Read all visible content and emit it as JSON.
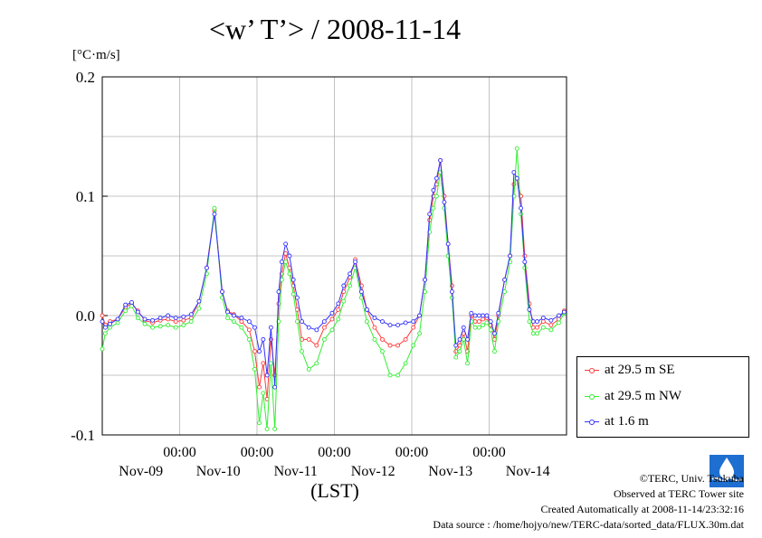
{
  "header": {
    "title": "<w’ T’> / 2008-11-14",
    "unit": "[°C·m/s]"
  },
  "xaxis_label": "(LST)",
  "legend": {
    "items": [
      {
        "label": "at 29.5 m SE",
        "color": "#ff3b3b"
      },
      {
        "label": "at 29.5 m NW",
        "color": "#33ee33"
      },
      {
        "label": "at 1.6 m",
        "color": "#3333ff"
      }
    ]
  },
  "credits": {
    "copyright": "©TERC, Univ. Tsukuba",
    "observed": "Observed at TERC Tower site",
    "created": "Created Automatically at 2008-11-14/23:32:16",
    "source": "Data source : /home/hojyo/new/TERC-data/sorted_data/FLUX.30m.dat"
  },
  "logo_text": "TERC",
  "chart_data": {
    "type": "line",
    "title": "<w’ T’> / 2008-11-14",
    "ylabel": "[°C·m/s]",
    "xlabel": "(LST)",
    "ylim": [
      -0.1,
      0.2
    ],
    "yticks": [
      "-0.1",
      "0.0",
      "0.1",
      "0.2"
    ],
    "xlim": [
      0.0,
      6.0
    ],
    "xticks": [
      {
        "time": "00:00",
        "date": "Nov-09"
      },
      {
        "time": "00:00",
        "date": "Nov-10"
      },
      {
        "time": "00:00",
        "date": "Nov-11"
      },
      {
        "time": "00:00",
        "date": "Nov-12"
      },
      {
        "time": "00:00",
        "date": "Nov-13"
      },
      {
        "time": "00:00",
        "date": "Nov-14"
      }
    ],
    "grid": true,
    "x_unit": "days",
    "series": [
      {
        "name": "at 29.5 m SE",
        "color": "#ff3b3b",
        "points": [
          [
            0.0,
            0.0
          ],
          [
            0.04,
            -0.008
          ],
          [
            0.1,
            -0.005
          ],
          [
            0.2,
            -0.003
          ],
          [
            0.3,
            0.007
          ],
          [
            0.38,
            0.01
          ],
          [
            0.46,
            0.004
          ],
          [
            0.55,
            -0.004
          ],
          [
            0.65,
            -0.006
          ],
          [
            0.75,
            -0.004
          ],
          [
            0.85,
            -0.003
          ],
          [
            0.95,
            -0.005
          ],
          [
            1.05,
            -0.004
          ],
          [
            1.15,
            -0.002
          ],
          [
            1.25,
            0.012
          ],
          [
            1.35,
            0.04
          ],
          [
            1.45,
            0.088
          ],
          [
            1.55,
            0.02
          ],
          [
            1.62,
            0.004
          ],
          [
            1.7,
            0.001
          ],
          [
            1.8,
            -0.005
          ],
          [
            1.9,
            -0.012
          ],
          [
            1.97,
            -0.03
          ],
          [
            2.03,
            -0.06
          ],
          [
            2.08,
            -0.04
          ],
          [
            2.13,
            -0.07
          ],
          [
            2.18,
            -0.02
          ],
          [
            2.23,
            -0.05
          ],
          [
            2.28,
            0.01
          ],
          [
            2.32,
            0.035
          ],
          [
            2.37,
            0.052
          ],
          [
            2.42,
            0.04
          ],
          [
            2.47,
            0.025
          ],
          [
            2.52,
            0.005
          ],
          [
            2.58,
            -0.02
          ],
          [
            2.67,
            -0.02
          ],
          [
            2.77,
            -0.025
          ],
          [
            2.87,
            -0.01
          ],
          [
            2.97,
            -0.003
          ],
          [
            3.05,
            0.005
          ],
          [
            3.12,
            0.02
          ],
          [
            3.2,
            0.032
          ],
          [
            3.27,
            0.047
          ],
          [
            3.35,
            0.025
          ],
          [
            3.42,
            0.005
          ],
          [
            3.52,
            -0.01
          ],
          [
            3.62,
            -0.02
          ],
          [
            3.72,
            -0.025
          ],
          [
            3.82,
            -0.025
          ],
          [
            3.92,
            -0.02
          ],
          [
            4.02,
            -0.01
          ],
          [
            4.1,
            0.0
          ],
          [
            4.17,
            0.03
          ],
          [
            4.23,
            0.08
          ],
          [
            4.28,
            0.1
          ],
          [
            4.32,
            0.11
          ],
          [
            4.37,
            0.13
          ],
          [
            4.42,
            0.1
          ],
          [
            4.47,
            0.06
          ],
          [
            4.52,
            0.025
          ],
          [
            4.57,
            -0.03
          ],
          [
            4.62,
            -0.025
          ],
          [
            4.67,
            -0.015
          ],
          [
            4.72,
            -0.03
          ],
          [
            4.77,
            0.0
          ],
          [
            4.82,
            -0.005
          ],
          [
            4.87,
            -0.005
          ],
          [
            4.92,
            -0.003
          ],
          [
            4.97,
            -0.002
          ],
          [
            5.02,
            -0.008
          ],
          [
            5.07,
            -0.02
          ],
          [
            5.12,
            0.0
          ],
          [
            5.2,
            0.03
          ],
          [
            5.27,
            0.05
          ],
          [
            5.32,
            0.11
          ],
          [
            5.36,
            0.115
          ],
          [
            5.41,
            0.1
          ],
          [
            5.46,
            0.05
          ],
          [
            5.52,
            0.01
          ],
          [
            5.57,
            -0.01
          ],
          [
            5.62,
            -0.01
          ],
          [
            5.7,
            -0.005
          ],
          [
            5.8,
            -0.008
          ],
          [
            5.9,
            -0.003
          ],
          [
            5.97,
            0.004
          ]
        ]
      },
      {
        "name": "at 29.5 m NW",
        "color": "#33ee33",
        "points": [
          [
            0.0,
            -0.028
          ],
          [
            0.04,
            -0.015
          ],
          [
            0.1,
            -0.01
          ],
          [
            0.2,
            -0.006
          ],
          [
            0.3,
            0.004
          ],
          [
            0.38,
            0.008
          ],
          [
            0.46,
            -0.002
          ],
          [
            0.55,
            -0.007
          ],
          [
            0.65,
            -0.01
          ],
          [
            0.75,
            -0.009
          ],
          [
            0.85,
            -0.008
          ],
          [
            0.95,
            -0.01
          ],
          [
            1.05,
            -0.008
          ],
          [
            1.15,
            -0.005
          ],
          [
            1.25,
            0.006
          ],
          [
            1.35,
            0.035
          ],
          [
            1.45,
            0.09
          ],
          [
            1.55,
            0.015
          ],
          [
            1.62,
            -0.002
          ],
          [
            1.7,
            -0.005
          ],
          [
            1.8,
            -0.01
          ],
          [
            1.9,
            -0.02
          ],
          [
            1.97,
            -0.045
          ],
          [
            2.03,
            -0.09
          ],
          [
            2.08,
            -0.065
          ],
          [
            2.13,
            -0.095
          ],
          [
            2.18,
            -0.04
          ],
          [
            2.23,
            -0.095
          ],
          [
            2.28,
            -0.005
          ],
          [
            2.32,
            0.03
          ],
          [
            2.37,
            0.045
          ],
          [
            2.42,
            0.035
          ],
          [
            2.47,
            0.018
          ],
          [
            2.52,
            -0.005
          ],
          [
            2.58,
            -0.03
          ],
          [
            2.67,
            -0.045
          ],
          [
            2.77,
            -0.04
          ],
          [
            2.87,
            -0.02
          ],
          [
            2.97,
            -0.012
          ],
          [
            3.05,
            -0.003
          ],
          [
            3.12,
            0.012
          ],
          [
            3.2,
            0.025
          ],
          [
            3.27,
            0.04
          ],
          [
            3.35,
            0.015
          ],
          [
            3.42,
            -0.005
          ],
          [
            3.52,
            -0.02
          ],
          [
            3.62,
            -0.03
          ],
          [
            3.72,
            -0.05
          ],
          [
            3.82,
            -0.05
          ],
          [
            3.92,
            -0.04
          ],
          [
            4.02,
            -0.025
          ],
          [
            4.1,
            -0.015
          ],
          [
            4.17,
            0.02
          ],
          [
            4.23,
            0.07
          ],
          [
            4.28,
            0.09
          ],
          [
            4.32,
            0.1
          ],
          [
            4.37,
            0.12
          ],
          [
            4.42,
            0.09
          ],
          [
            4.47,
            0.05
          ],
          [
            4.52,
            0.015
          ],
          [
            4.57,
            -0.035
          ],
          [
            4.62,
            -0.03
          ],
          [
            4.67,
            -0.02
          ],
          [
            4.72,
            -0.04
          ],
          [
            4.77,
            -0.005
          ],
          [
            4.82,
            -0.01
          ],
          [
            4.87,
            -0.01
          ],
          [
            4.92,
            -0.008
          ],
          [
            4.97,
            -0.006
          ],
          [
            5.02,
            -0.012
          ],
          [
            5.07,
            -0.03
          ],
          [
            5.12,
            -0.005
          ],
          [
            5.2,
            0.02
          ],
          [
            5.27,
            0.045
          ],
          [
            5.32,
            0.1
          ],
          [
            5.36,
            0.14
          ],
          [
            5.41,
            0.085
          ],
          [
            5.46,
            0.04
          ],
          [
            5.52,
            -0.005
          ],
          [
            5.57,
            -0.015
          ],
          [
            5.62,
            -0.015
          ],
          [
            5.7,
            -0.01
          ],
          [
            5.8,
            -0.012
          ],
          [
            5.9,
            -0.006
          ],
          [
            5.97,
            0.002
          ]
        ]
      },
      {
        "name": "at 1.6 m",
        "color": "#3333ff",
        "points": [
          [
            0.0,
            -0.005
          ],
          [
            0.04,
            -0.01
          ],
          [
            0.1,
            -0.007
          ],
          [
            0.2,
            -0.003
          ],
          [
            0.3,
            0.009
          ],
          [
            0.38,
            0.011
          ],
          [
            0.46,
            0.003
          ],
          [
            0.55,
            -0.003
          ],
          [
            0.65,
            -0.004
          ],
          [
            0.75,
            -0.002
          ],
          [
            0.85,
            0.0
          ],
          [
            0.95,
            -0.002
          ],
          [
            1.05,
            -0.001
          ],
          [
            1.15,
            0.001
          ],
          [
            1.25,
            0.012
          ],
          [
            1.35,
            0.04
          ],
          [
            1.45,
            0.085
          ],
          [
            1.55,
            0.02
          ],
          [
            1.62,
            0.003
          ],
          [
            1.7,
            0.0
          ],
          [
            1.8,
            -0.002
          ],
          [
            1.9,
            -0.005
          ],
          [
            1.97,
            -0.01
          ],
          [
            2.03,
            -0.03
          ],
          [
            2.08,
            -0.02
          ],
          [
            2.13,
            -0.05
          ],
          [
            2.18,
            -0.01
          ],
          [
            2.23,
            -0.06
          ],
          [
            2.28,
            0.02
          ],
          [
            2.32,
            0.045
          ],
          [
            2.37,
            0.06
          ],
          [
            2.42,
            0.05
          ],
          [
            2.47,
            0.03
          ],
          [
            2.52,
            0.015
          ],
          [
            2.58,
            -0.005
          ],
          [
            2.67,
            -0.01
          ],
          [
            2.77,
            -0.012
          ],
          [
            2.87,
            -0.005
          ],
          [
            2.97,
            0.002
          ],
          [
            3.05,
            0.01
          ],
          [
            3.12,
            0.025
          ],
          [
            3.2,
            0.035
          ],
          [
            3.27,
            0.045
          ],
          [
            3.35,
            0.02
          ],
          [
            3.42,
            0.005
          ],
          [
            3.52,
            -0.002
          ],
          [
            3.62,
            -0.005
          ],
          [
            3.72,
            -0.008
          ],
          [
            3.82,
            -0.008
          ],
          [
            3.92,
            -0.006
          ],
          [
            4.02,
            -0.005
          ],
          [
            4.1,
            0.0
          ],
          [
            4.17,
            0.03
          ],
          [
            4.23,
            0.085
          ],
          [
            4.28,
            0.105
          ],
          [
            4.32,
            0.115
          ],
          [
            4.37,
            0.13
          ],
          [
            4.42,
            0.095
          ],
          [
            4.47,
            0.06
          ],
          [
            4.52,
            0.02
          ],
          [
            4.57,
            -0.025
          ],
          [
            4.62,
            -0.02
          ],
          [
            4.67,
            -0.01
          ],
          [
            4.72,
            -0.02
          ],
          [
            4.77,
            0.002
          ],
          [
            4.82,
            0.0
          ],
          [
            4.87,
            0.0
          ],
          [
            4.92,
            0.0
          ],
          [
            4.97,
            0.0
          ],
          [
            5.02,
            -0.005
          ],
          [
            5.07,
            -0.015
          ],
          [
            5.12,
            0.002
          ],
          [
            5.2,
            0.03
          ],
          [
            5.27,
            0.05
          ],
          [
            5.32,
            0.12
          ],
          [
            5.36,
            0.115
          ],
          [
            5.41,
            0.09
          ],
          [
            5.46,
            0.045
          ],
          [
            5.52,
            0.005
          ],
          [
            5.57,
            -0.005
          ],
          [
            5.62,
            -0.005
          ],
          [
            5.7,
            -0.002
          ],
          [
            5.8,
            -0.004
          ],
          [
            5.9,
            0.0
          ],
          [
            5.97,
            0.003
          ]
        ]
      }
    ]
  }
}
